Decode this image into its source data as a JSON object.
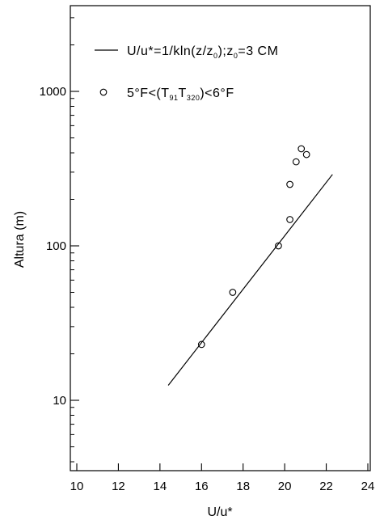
{
  "chart_data": {
    "type": "scatter",
    "title": "",
    "xlabel": "U/u*",
    "ylabel": "Altura  (m)",
    "xlim": [
      10,
      24
    ],
    "ylim": [
      4,
      4000
    ],
    "yscale": "log",
    "x_ticks": [
      "10",
      "12",
      "14",
      "16",
      "18",
      "20",
      "22",
      "24"
    ],
    "y_ticks": [
      "10",
      "100",
      "1000"
    ],
    "grid": false,
    "legend_position": "top",
    "series": [
      {
        "name": "U/u*=1/kln(z/z0);z0=3 CM",
        "kind": "line",
        "x": [
          14.4,
          22.3
        ],
        "y": [
          12.5,
          290
        ]
      },
      {
        "name": "5°F<(T91-T320)<6°F",
        "kind": "scatter",
        "x": [
          16.0,
          17.5,
          19.7,
          20.25,
          20.25,
          20.55,
          20.8,
          21.05
        ],
        "y": [
          23,
          50,
          100,
          148,
          250,
          350,
          425,
          390
        ]
      }
    ]
  },
  "legend": {
    "line_main": "U/u*=1/kln(z/z",
    "line_sub1": "0",
    "line_mid": ");z",
    "line_sub2": "0",
    "line_end": "=3  CM",
    "scatter_a": "5°F<(T",
    "scatter_sub1": "91",
    "scatter_b": "T",
    "scatter_sub2": "320",
    "scatter_c": ")<6°F"
  }
}
